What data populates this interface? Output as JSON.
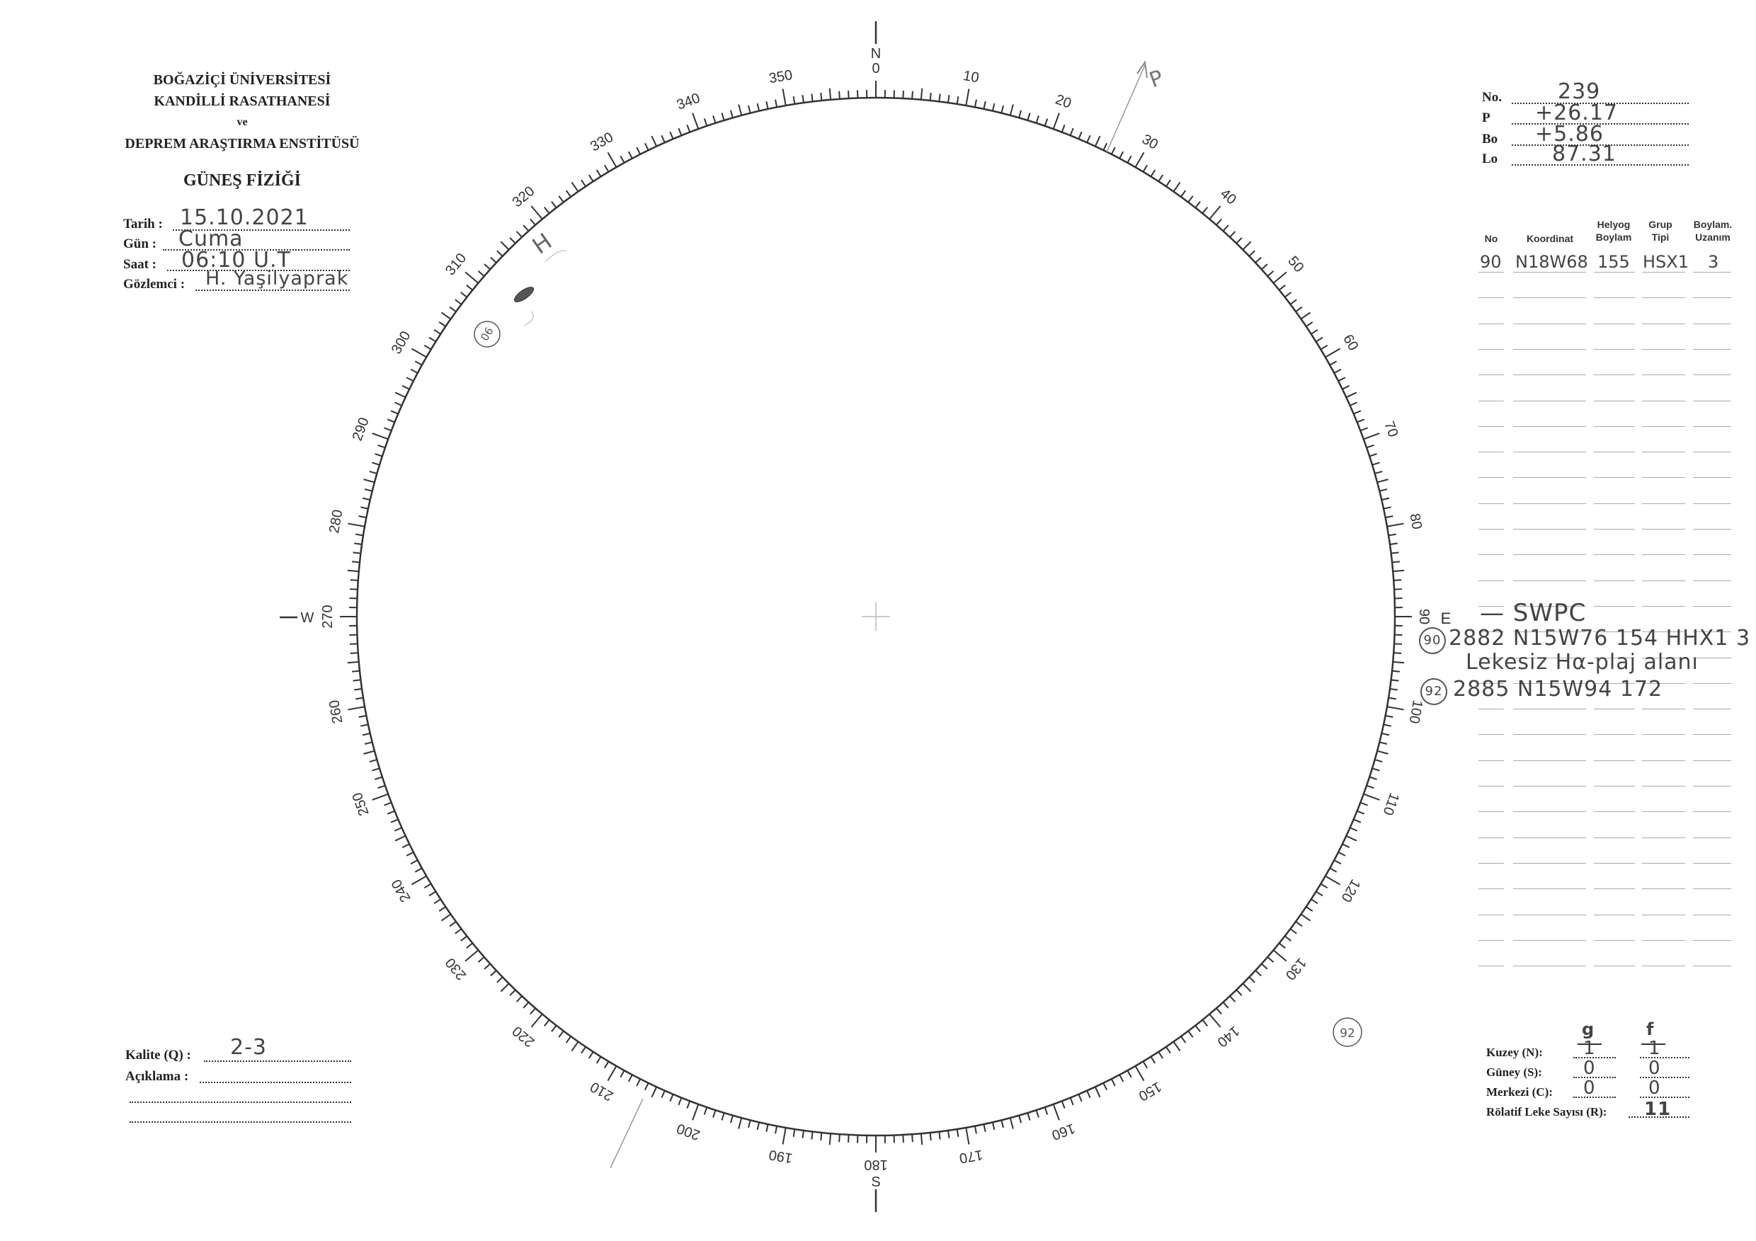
{
  "institution": {
    "line1": "BOĞAZİÇİ ÜNİVERSİTESİ",
    "line2": "KANDİLLİ RASATHANESİ",
    "line3": "ve",
    "line4": "DEPREM ARAŞTIRMA ENSTİTÜSÜ",
    "department": "GÜNEŞ FİZİĞİ"
  },
  "observation": {
    "date_label": "Tarih :",
    "date": "15.10.2021",
    "day_label": "Gün :",
    "day": "Cuma",
    "time_label": "Saat :",
    "time": "06:10 U.T",
    "observer_label": "Gözlemci :",
    "observer": "H. Yaşilyaprak"
  },
  "ephemeris": {
    "no_label": "No.",
    "no": "239",
    "p_label": "P",
    "p": "+26.17",
    "bo_label": "Bo",
    "bo": "+5.86",
    "lo_label": "Lo",
    "lo": "87.31"
  },
  "table": {
    "headers": [
      "No",
      "Koordinat",
      "Helyog Boylam",
      "Grup Tipi",
      "Boylam. Uzanım"
    ],
    "rows": [
      [
        "90",
        "N18W68",
        "155",
        "HSX1",
        "3"
      ]
    ],
    "notes": {
      "swpc": "— SWPC",
      "swpc_row1": "2882 N15W76 154 HHX1 3",
      "swpc_row1_no": "90",
      "swpc_row1_note": "Lekesiz Hα-plaj alanı",
      "swpc_row2": "2885 N15W94 172",
      "swpc_row2_no": "92"
    }
  },
  "disk": {
    "north": "N",
    "south": "S",
    "west": "W",
    "east": "E",
    "degree_labels": [
      "0",
      "10",
      "20",
      "30",
      "40",
      "50",
      "60",
      "70",
      "80",
      "90",
      "100",
      "110",
      "120",
      "130",
      "140",
      "150",
      "160",
      "170",
      "180",
      "190",
      "200",
      "210",
      "220",
      "230",
      "240",
      "250",
      "260",
      "270",
      "280",
      "290",
      "300",
      "310",
      "320",
      "330",
      "340",
      "350"
    ],
    "p_axis_label": "P",
    "group_markers": [
      "90",
      "92"
    ],
    "spot_annotation": "H"
  },
  "quality": {
    "label": "Kalite (Q) :",
    "value": "2-3",
    "remarks_label": "Açıklama :"
  },
  "counts": {
    "g_header": "g",
    "f_header": "f",
    "north_label": "Kuzey (N):",
    "north_g": "1",
    "north_f": "1",
    "south_label": "Güney (S):",
    "south_g": "0",
    "south_f": "0",
    "center_label": "Merkezi (C):",
    "center_g": "0",
    "center_f": "0",
    "r_label": "Rölatif Leke Sayısı (R):",
    "r": "11"
  }
}
